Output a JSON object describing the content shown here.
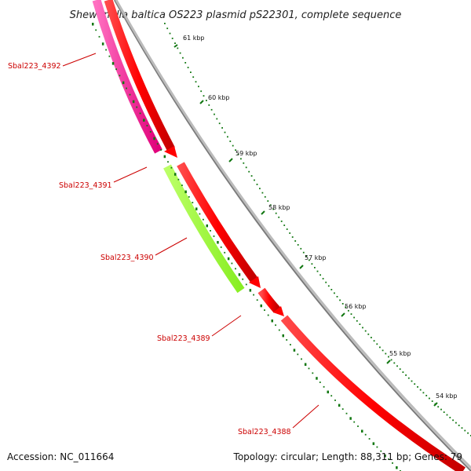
{
  "title": "Shewanella baltica OS223 plasmid pS22301, complete sequence",
  "footer": {
    "accession": "Accession: NC_011664",
    "summary": "Topology: circular; Length: 88,311 bp; Genes: 79"
  },
  "ticks": [
    "61 kbp",
    "60 kbp",
    "59 kbp",
    "58 kbp",
    "57 kbp",
    "56 kbp",
    "55 kbp",
    "54 kbp"
  ],
  "genes": [
    {
      "label": "Sbal223_4392",
      "color": "#ff3399"
    },
    {
      "label": "Sbal223_4391",
      "color": "#ff0000"
    },
    {
      "label": "Sbal223_4390",
      "color": "#99ff33"
    },
    {
      "label": "Sbal223_4389",
      "color": "#ff0000"
    },
    {
      "label": "Sbal223_4388",
      "color": "#ff0000"
    }
  ],
  "colors": {
    "cds": "#ff0000",
    "backbone": "#999999",
    "tick": "#117711",
    "label": "#cc0000"
  }
}
